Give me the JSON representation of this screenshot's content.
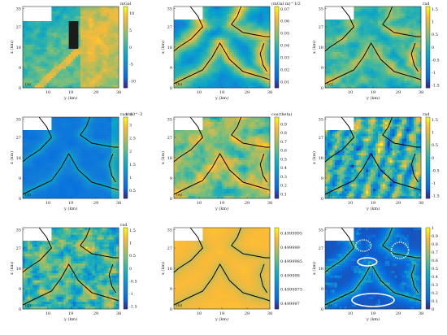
{
  "chart_data": [
    {
      "type": "heatmap",
      "panel_label": "(a)",
      "colorbar_unit": "mGal",
      "colorbar_ticks": [
        "10",
        "5",
        "0",
        "-5",
        "-10"
      ],
      "clim": [
        -12,
        12
      ],
      "cmap": "parula",
      "contours": false,
      "mask": true,
      "field": "a",
      "x_ticks": [
        "10",
        "19",
        "29",
        "38"
      ],
      "y_ticks": [
        "35",
        "27",
        "18",
        "9",
        "0"
      ],
      "xlabel": "y (km)",
      "ylabel": "x (km)"
    },
    {
      "type": "heatmap",
      "panel_label": "(b)",
      "colorbar_unit": "(mGal m)^1/2",
      "colorbar_ticks": [
        "0.07",
        "0.06",
        "0.05",
        "0.04",
        "0.03",
        "0.02",
        "0.01"
      ],
      "clim": [
        0.005,
        0.072
      ],
      "cmap": "parula",
      "contours": true,
      "mask": true,
      "field": "b",
      "x_ticks": [
        "10",
        "19",
        "29",
        "38"
      ],
      "y_ticks": [
        "35",
        "27",
        "18",
        "9",
        "0"
      ],
      "xlabel": "y (km)",
      "ylabel": "x (km)"
    },
    {
      "type": "heatmap",
      "panel_label": "(c)",
      "colorbar_unit": "rad",
      "colorbar_ticks": [
        "1.5",
        "1",
        "0.5",
        "0",
        "-0.5",
        "-1",
        "-1.5"
      ],
      "clim": [
        -1.6,
        1.6
      ],
      "cmap": "parula",
      "contours": true,
      "mask": true,
      "field": "c",
      "x_ticks": [
        "10",
        "19",
        "29",
        "38"
      ],
      "y_ticks": [
        "35",
        "27",
        "18",
        "9",
        "0"
      ],
      "xlabel": "y (km)",
      "ylabel": "x (km)"
    },
    {
      "type": "heatmap",
      "panel_label": "(d)",
      "colorbar_unit": "rad/m",
      "colorbar_exponent": "× 10^-3",
      "colorbar_ticks": [
        "3",
        "2.5",
        "2",
        "1.5",
        "1",
        "0.5"
      ],
      "clim": [
        0.2,
        3.3
      ],
      "cmap": "parula",
      "contours": true,
      "mask": true,
      "field": "d",
      "x_ticks": [
        "10",
        "19",
        "29",
        "38"
      ],
      "y_ticks": [
        "35",
        "27",
        "18",
        "9",
        "0"
      ],
      "xlabel": "y (km)",
      "ylabel": "x (km)"
    },
    {
      "type": "heatmap",
      "panel_label": "(e)",
      "colorbar_unit": "cos(theta)",
      "colorbar_ticks": [
        "0.9",
        "0.8",
        "0.7",
        "0.6",
        "0.5",
        "0.4",
        "0.3",
        "0.2",
        "0.1"
      ],
      "clim": [
        0.05,
        0.98
      ],
      "cmap": "parula",
      "contours": true,
      "mask": true,
      "field": "e",
      "x_ticks": [
        "10",
        "19",
        "29",
        "38"
      ],
      "y_ticks": [
        "35",
        "27",
        "18",
        "9",
        "0"
      ],
      "xlabel": "y (km)",
      "ylabel": "x (km)"
    },
    {
      "type": "heatmap",
      "panel_label": "(f)",
      "colorbar_unit": "rad",
      "colorbar_ticks": [
        "1.5",
        "1",
        "0.5",
        "0",
        "-0.5",
        "-1",
        "-1.5"
      ],
      "clim": [
        -1.6,
        1.6
      ],
      "cmap": "parula",
      "contours": true,
      "mask": true,
      "field": "f",
      "x_ticks": [
        "10",
        "19",
        "29",
        "38"
      ],
      "y_ticks": [
        "35",
        "27",
        "18",
        "9",
        "0"
      ],
      "xlabel": "y (km)",
      "ylabel": "x (km)"
    },
    {
      "type": "heatmap",
      "panel_label": "(g)",
      "colorbar_unit": "rad",
      "colorbar_ticks": [
        "1.5",
        "1",
        "0.5",
        "0",
        "-0.5",
        "-1",
        "-1.5"
      ],
      "clim": [
        -1.6,
        1.6
      ],
      "cmap": "parula",
      "contours": true,
      "mask": true,
      "field": "g",
      "x_ticks": [
        "10",
        "19",
        "29",
        "38"
      ],
      "y_ticks": [
        "35",
        "27",
        "18",
        "9",
        "0"
      ],
      "xlabel": "y (km)",
      "ylabel": "x (km)"
    },
    {
      "type": "heatmap",
      "panel_label": "(h)",
      "colorbar_unit": "",
      "colorbar_ticks": [
        "0.4999995",
        "0.499999",
        "0.4999985",
        "0.499998",
        "0.4999975",
        "0.499997"
      ],
      "clim": [
        0.4999968,
        0.4999997
      ],
      "cmap": "parula",
      "contours": true,
      "mask": true,
      "field": "h",
      "x_ticks": [
        "10",
        "19",
        "29",
        "38"
      ],
      "y_ticks": [
        "35",
        "27",
        "18",
        "9",
        "0"
      ],
      "xlabel": "y (km)",
      "ylabel": "x (km)"
    },
    {
      "type": "heatmap",
      "panel_label": "(i)",
      "colorbar_unit": "",
      "colorbar_ticks": [
        "1",
        "0.9",
        "0.8",
        "0.7",
        "0.6",
        "0.5",
        "0.4",
        "0.3",
        "0.2",
        "0.1",
        "0"
      ],
      "clim": [
        0,
        1
      ],
      "cmap": "parula",
      "contours": true,
      "mask": true,
      "field": "i",
      "ellipses": true,
      "x_ticks": [
        "10",
        "19",
        "29",
        "38"
      ],
      "y_ticks": [
        "35",
        "27",
        "18",
        "9",
        "0"
      ],
      "xlabel": "y (km)",
      "ylabel": "x (km)"
    }
  ]
}
